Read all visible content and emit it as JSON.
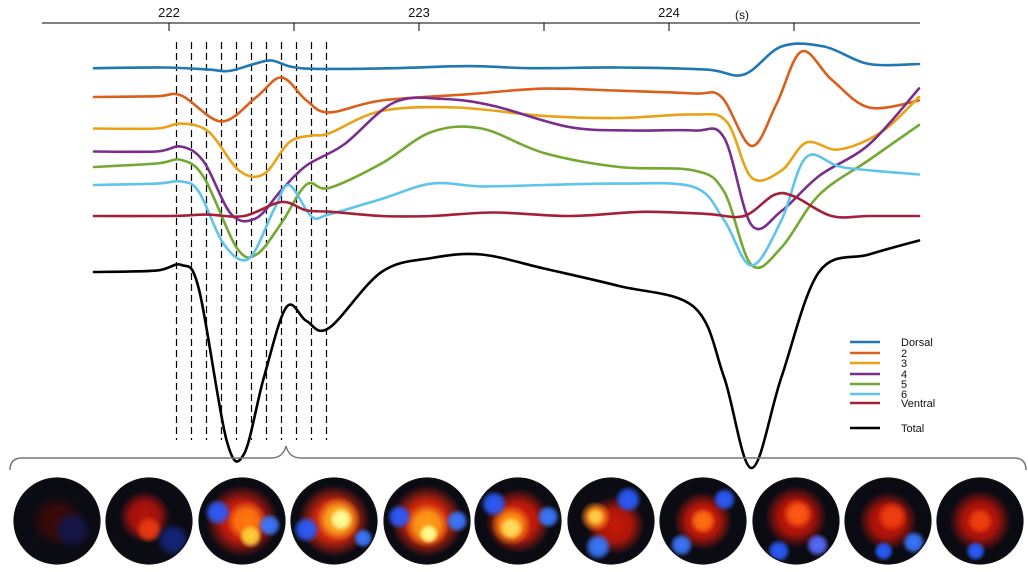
{
  "chart_data": {
    "type": "line",
    "title": "",
    "xlabel": "",
    "ylabel": "",
    "x_unit": "(s)",
    "xlim": [
      221.7,
      225.0
    ],
    "x_ticks": [
      222,
      222.5,
      223,
      223.5,
      224,
      224.5
    ],
    "x_tick_labels": [
      "222",
      "",
      "223",
      "",
      "224",
      ""
    ],
    "y_axis_visible": false,
    "grid": false,
    "legend_position": "bottom-right",
    "frame_times": [
      222.03,
      222.09,
      222.15,
      222.21,
      222.27,
      222.33,
      222.39,
      222.45,
      222.51,
      222.57,
      222.63
    ],
    "series": [
      {
        "name": "Dorsal",
        "color": "#1f77b4",
        "points": [
          [
            221.7,
            0.06
          ],
          [
            221.98,
            0.05
          ],
          [
            222.16,
            0.08
          ],
          [
            222.24,
            0.1
          ],
          [
            222.34,
            0.0
          ],
          [
            222.41,
            -0.05
          ],
          [
            222.49,
            0.04
          ],
          [
            222.6,
            0.07
          ],
          [
            222.9,
            0.06
          ],
          [
            223.2,
            0.03
          ],
          [
            223.45,
            0.06
          ],
          [
            223.8,
            0.05
          ],
          [
            224.15,
            0.08
          ],
          [
            224.3,
            0.15
          ],
          [
            224.45,
            -0.25
          ],
          [
            224.62,
            -0.25
          ],
          [
            224.8,
            0.0
          ],
          [
            225.0,
            0.0
          ]
        ]
      },
      {
        "name": "2",
        "color": "#d95f1a",
        "points": [
          [
            221.7,
            0.1
          ],
          [
            221.95,
            0.09
          ],
          [
            222.05,
            0.08
          ],
          [
            222.21,
            0.45
          ],
          [
            222.35,
            0.1
          ],
          [
            222.45,
            -0.18
          ],
          [
            222.55,
            0.15
          ],
          [
            222.64,
            0.32
          ],
          [
            222.85,
            0.15
          ],
          [
            223.2,
            0.06
          ],
          [
            223.5,
            -0.02
          ],
          [
            223.8,
            0.01
          ],
          [
            224.1,
            0.05
          ],
          [
            224.21,
            0.1
          ],
          [
            224.33,
            0.8
          ],
          [
            224.43,
            0.2
          ],
          [
            224.53,
            -0.55
          ],
          [
            224.65,
            -0.15
          ],
          [
            224.8,
            0.25
          ],
          [
            225.0,
            0.15
          ]
        ]
      },
      {
        "name": "3",
        "color": "#e8a317",
        "points": [
          [
            221.7,
            0.15
          ],
          [
            221.95,
            0.15
          ],
          [
            222.05,
            0.08
          ],
          [
            222.16,
            0.2
          ],
          [
            222.28,
            0.75
          ],
          [
            222.38,
            0.8
          ],
          [
            222.48,
            0.35
          ],
          [
            222.57,
            0.25
          ],
          [
            222.64,
            0.22
          ],
          [
            222.85,
            -0.1
          ],
          [
            223.15,
            -0.15
          ],
          [
            223.5,
            -0.03
          ],
          [
            223.8,
            0.0
          ],
          [
            224.1,
            -0.05
          ],
          [
            224.23,
            0.05
          ],
          [
            224.33,
            0.85
          ],
          [
            224.45,
            0.75
          ],
          [
            224.55,
            0.35
          ],
          [
            224.68,
            0.45
          ],
          [
            224.85,
            0.2
          ],
          [
            225.0,
            -0.3
          ]
        ]
      },
      {
        "name": "4",
        "color": "#7b2d8e",
        "points": [
          [
            221.7,
            0.15
          ],
          [
            221.95,
            0.15
          ],
          [
            222.05,
            0.08
          ],
          [
            222.14,
            0.3
          ],
          [
            222.25,
            1.05
          ],
          [
            222.35,
            1.1
          ],
          [
            222.45,
            0.7
          ],
          [
            222.55,
            0.35
          ],
          [
            222.7,
            0.05
          ],
          [
            222.9,
            -0.55
          ],
          [
            223.1,
            -0.6
          ],
          [
            223.3,
            -0.5
          ],
          [
            223.6,
            -0.2
          ],
          [
            223.85,
            -0.15
          ],
          [
            224.1,
            -0.15
          ],
          [
            224.22,
            -0.05
          ],
          [
            224.33,
            1.2
          ],
          [
            224.45,
            1.0
          ],
          [
            224.6,
            0.5
          ],
          [
            224.8,
            0.05
          ],
          [
            225.0,
            -0.75
          ]
        ]
      },
      {
        "name": "5",
        "color": "#73a833",
        "points": [
          [
            221.7,
            0.1
          ],
          [
            221.95,
            0.05
          ],
          [
            222.05,
            0.0
          ],
          [
            222.14,
            0.25
          ],
          [
            222.27,
            1.25
          ],
          [
            222.35,
            1.35
          ],
          [
            222.45,
            0.9
          ],
          [
            222.55,
            0.35
          ],
          [
            222.64,
            0.4
          ],
          [
            222.85,
            0.05
          ],
          [
            223.05,
            -0.4
          ],
          [
            223.25,
            -0.45
          ],
          [
            223.5,
            -0.1
          ],
          [
            223.8,
            0.1
          ],
          [
            224.1,
            0.15
          ],
          [
            224.22,
            0.45
          ],
          [
            224.33,
            1.5
          ],
          [
            224.45,
            1.25
          ],
          [
            224.6,
            0.5
          ],
          [
            224.8,
            0.0
          ],
          [
            225.0,
            -0.5
          ]
        ]
      },
      {
        "name": "6",
        "color": "#5ec4ea",
        "points": [
          [
            221.7,
            0.0
          ],
          [
            221.95,
            -0.02
          ],
          [
            222.05,
            -0.05
          ],
          [
            222.12,
            0.1
          ],
          [
            222.22,
            0.85
          ],
          [
            222.32,
            1.05
          ],
          [
            222.42,
            0.35
          ],
          [
            222.48,
            0.0
          ],
          [
            222.57,
            0.45
          ],
          [
            222.64,
            0.42
          ],
          [
            222.85,
            0.2
          ],
          [
            223.05,
            -0.02
          ],
          [
            223.25,
            0.02
          ],
          [
            223.5,
            0.0
          ],
          [
            223.8,
            -0.02
          ],
          [
            224.1,
            0.03
          ],
          [
            224.22,
            0.5
          ],
          [
            224.33,
            1.15
          ],
          [
            224.45,
            0.5
          ],
          [
            224.55,
            -0.4
          ],
          [
            224.7,
            -0.25
          ],
          [
            225.0,
            -0.15
          ]
        ]
      },
      {
        "name": "Ventral",
        "color": "#a3203a",
        "points": [
          [
            221.7,
            0.0
          ],
          [
            222.0,
            0.0
          ],
          [
            222.15,
            -0.02
          ],
          [
            222.3,
            0.0
          ],
          [
            222.45,
            -0.2
          ],
          [
            222.55,
            -0.08
          ],
          [
            222.65,
            -0.06
          ],
          [
            222.85,
            0.0
          ],
          [
            223.05,
            0.0
          ],
          [
            223.3,
            -0.05
          ],
          [
            223.6,
            0.0
          ],
          [
            223.9,
            -0.06
          ],
          [
            224.15,
            -0.03
          ],
          [
            224.3,
            0.0
          ],
          [
            224.42,
            -0.3
          ],
          [
            224.5,
            -0.28
          ],
          [
            224.65,
            0.0
          ],
          [
            224.8,
            0.0
          ],
          [
            225.0,
            0.0
          ]
        ]
      },
      {
        "name": "Total",
        "color": "#000000",
        "points": [
          [
            221.7,
            0.0
          ],
          [
            221.95,
            -0.02
          ],
          [
            222.05,
            -0.1
          ],
          [
            222.12,
            0.25
          ],
          [
            222.23,
            2.4
          ],
          [
            222.3,
            2.6
          ],
          [
            222.38,
            1.5
          ],
          [
            222.47,
            0.5
          ],
          [
            222.55,
            0.7
          ],
          [
            222.64,
            0.8
          ],
          [
            222.85,
            0.0
          ],
          [
            223.05,
            -0.2
          ],
          [
            223.25,
            -0.25
          ],
          [
            223.5,
            -0.05
          ],
          [
            223.8,
            0.2
          ],
          [
            224.1,
            0.5
          ],
          [
            224.22,
            1.5
          ],
          [
            224.33,
            2.8
          ],
          [
            224.45,
            1.5
          ],
          [
            224.6,
            0.0
          ],
          [
            224.8,
            -0.25
          ],
          [
            225.0,
            -0.45
          ]
        ]
      }
    ],
    "maps": [
      {
        "blobs": [
          [
            "#3a0a08",
            0.5,
            0.5,
            0.3
          ],
          [
            "#14164a",
            0.68,
            0.6,
            0.22
          ]
        ]
      },
      {
        "blobs": [
          [
            "#b8120c",
            0.45,
            0.45,
            0.3
          ],
          [
            "#e83a10",
            0.5,
            0.6,
            0.16
          ],
          [
            "#14247a",
            0.78,
            0.72,
            0.2
          ]
        ]
      },
      {
        "blobs": [
          [
            "#d81c0c",
            0.5,
            0.5,
            0.42
          ],
          [
            "#ff7a10",
            0.55,
            0.5,
            0.24
          ],
          [
            "#ffd23a",
            0.6,
            0.68,
            0.14
          ],
          [
            "#2a5cff",
            0.22,
            0.4,
            0.16
          ],
          [
            "#3a78ff",
            0.82,
            0.55,
            0.14
          ]
        ]
      },
      {
        "blobs": [
          [
            "#e8280c",
            0.5,
            0.5,
            0.42
          ],
          [
            "#ffb020",
            0.55,
            0.48,
            0.26
          ],
          [
            "#ffffa0",
            0.58,
            0.48,
            0.14
          ],
          [
            "#2a5cff",
            0.18,
            0.6,
            0.16
          ],
          [
            "#3a78ff",
            0.84,
            0.7,
            0.12
          ]
        ]
      },
      {
        "blobs": [
          [
            "#e8280c",
            0.5,
            0.5,
            0.42
          ],
          [
            "#ffa018",
            0.5,
            0.55,
            0.26
          ],
          [
            "#ffff90",
            0.52,
            0.65,
            0.12
          ],
          [
            "#2a5cff",
            0.18,
            0.45,
            0.15
          ],
          [
            "#3a78ff",
            0.85,
            0.5,
            0.14
          ]
        ]
      },
      {
        "blobs": [
          [
            "#d81c0c",
            0.5,
            0.5,
            0.38
          ],
          [
            "#ff9010",
            0.42,
            0.55,
            0.24
          ],
          [
            "#ffe060",
            0.42,
            0.58,
            0.14
          ],
          [
            "#2a5cff",
            0.22,
            0.3,
            0.16
          ],
          [
            "#3a78ff",
            0.85,
            0.45,
            0.14
          ]
        ]
      },
      {
        "blobs": [
          [
            "#c81808",
            0.55,
            0.55,
            0.34
          ],
          [
            "#ff8a18",
            0.32,
            0.45,
            0.18
          ],
          [
            "#ffd04a",
            0.32,
            0.45,
            0.1
          ],
          [
            "#2a5cff",
            0.7,
            0.25,
            0.16
          ],
          [
            "#3a78ff",
            0.35,
            0.8,
            0.16
          ]
        ]
      },
      {
        "blobs": [
          [
            "#d0180a",
            0.5,
            0.5,
            0.34
          ],
          [
            "#ff7010",
            0.5,
            0.5,
            0.16
          ],
          [
            "#2a5cff",
            0.75,
            0.25,
            0.14
          ],
          [
            "#3a78ff",
            0.25,
            0.78,
            0.14
          ]
        ]
      },
      {
        "blobs": [
          [
            "#c81408",
            0.5,
            0.45,
            0.36
          ],
          [
            "#ff5a12",
            0.52,
            0.42,
            0.18
          ],
          [
            "#2a5cff",
            0.3,
            0.85,
            0.14
          ],
          [
            "#5a6cff",
            0.75,
            0.78,
            0.14
          ]
        ]
      },
      {
        "blobs": [
          [
            "#c41408",
            0.5,
            0.5,
            0.34
          ],
          [
            "#f0400e",
            0.55,
            0.45,
            0.18
          ],
          [
            "#2a5cff",
            0.45,
            0.85,
            0.12
          ],
          [
            "#3a78ff",
            0.8,
            0.75,
            0.14
          ]
        ]
      },
      {
        "blobs": [
          [
            "#c41408",
            0.5,
            0.5,
            0.36
          ],
          [
            "#f0400e",
            0.5,
            0.5,
            0.16
          ],
          [
            "#2a5cff",
            0.45,
            0.85,
            0.12
          ]
        ]
      }
    ]
  }
}
